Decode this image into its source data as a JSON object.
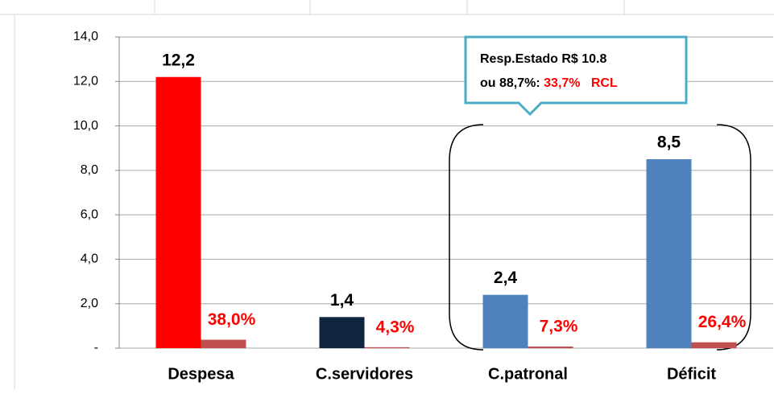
{
  "chart_data": {
    "type": "bar",
    "categories": [
      "Despesa",
      "C.servidores",
      "C.patronal",
      "Déficit"
    ],
    "series": [
      {
        "colors": [
          "#ff0000",
          "#10253f",
          "#4f81bd",
          "#4f81bd"
        ],
        "values": [
          12.2,
          1.4,
          2.4,
          8.5
        ],
        "value_labels": [
          "12,2",
          "1,4",
          "2,4",
          "8,5"
        ],
        "label_color": "#000000"
      },
      {
        "color": "#c0504d",
        "values": [
          0.38,
          0.043,
          0.073,
          0.264
        ],
        "value_labels": [
          "38,0%",
          "4,3%",
          "7,3%",
          "26,4%"
        ],
        "label_color": "#ff0000"
      }
    ],
    "ylim": [
      0,
      14
    ],
    "yticks": [
      {
        "value": 0,
        "label": "-"
      },
      {
        "value": 2,
        "label": "2,0"
      },
      {
        "value": 4,
        "label": "4,0"
      },
      {
        "value": 6,
        "label": "6,0"
      },
      {
        "value": 8,
        "label": "8,0"
      },
      {
        "value": 10,
        "label": "10,0"
      },
      {
        "value": 12,
        "label": "12,0"
      },
      {
        "value": 14,
        "label": "14,0"
      }
    ],
    "grid": true,
    "annotation": {
      "line1": "Resp.Estado R$ 10.8",
      "line2_black": "ou 88,7%:",
      "line2_red": "33,7%   RCL"
    }
  }
}
